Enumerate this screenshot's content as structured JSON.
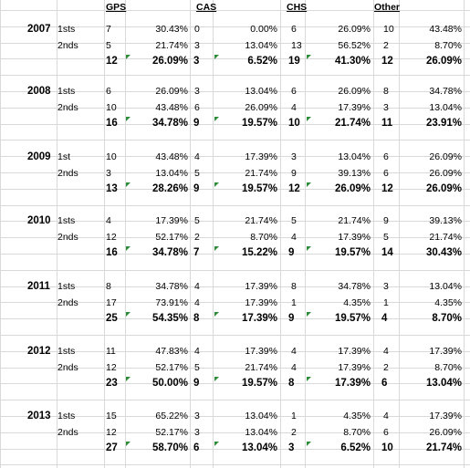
{
  "headers": {
    "gps": "GPS",
    "cas": "CAS",
    "chs": "CHS",
    "other": "Other"
  },
  "blocks": [
    {
      "year": "2007",
      "rows": [
        {
          "label": "1sts",
          "gps": "7",
          "gps_pct": "30.43%",
          "cas": "0",
          "cas_pct": "0.00%",
          "chs": "6",
          "chs_pct": "26.09%",
          "other": "10",
          "other_pct": "43.48%"
        },
        {
          "label": "2nds",
          "gps": "5",
          "gps_pct": "21.74%",
          "cas": "3",
          "cas_pct": "13.04%",
          "chs": "13",
          "chs_pct": "56.52%",
          "other": "2",
          "other_pct": "8.70%"
        }
      ],
      "total": {
        "gps": "12",
        "gps_pct": "26.09%",
        "cas": "3",
        "cas_pct": "6.52%",
        "chs": "19",
        "chs_pct": "41.30%",
        "other": "12",
        "other_pct": "26.09%"
      }
    },
    {
      "year": "2008",
      "rows": [
        {
          "label": "1sts",
          "gps": "6",
          "gps_pct": "26.09%",
          "cas": "3",
          "cas_pct": "13.04%",
          "chs": "6",
          "chs_pct": "26.09%",
          "other": "8",
          "other_pct": "34.78%"
        },
        {
          "label": "2nds",
          "gps": "10",
          "gps_pct": "43.48%",
          "cas": "6",
          "cas_pct": "26.09%",
          "chs": "4",
          "chs_pct": "17.39%",
          "other": "3",
          "other_pct": "13.04%"
        }
      ],
      "total": {
        "gps": "16",
        "gps_pct": "34.78%",
        "cas": "9",
        "cas_pct": "19.57%",
        "chs": "10",
        "chs_pct": "21.74%",
        "other": "11",
        "other_pct": "23.91%"
      }
    },
    {
      "year": "2009",
      "rows": [
        {
          "label": "1st",
          "gps": "10",
          "gps_pct": "43.48%",
          "cas": "4",
          "cas_pct": "17.39%",
          "chs": "3",
          "chs_pct": "13.04%",
          "other": "6",
          "other_pct": "26.09%"
        },
        {
          "label": "2nds",
          "gps": "3",
          "gps_pct": "13.04%",
          "cas": "5",
          "cas_pct": "21.74%",
          "chs": "9",
          "chs_pct": "39.13%",
          "other": "6",
          "other_pct": "26.09%"
        }
      ],
      "total": {
        "gps": "13",
        "gps_pct": "28.26%",
        "cas": "9",
        "cas_pct": "19.57%",
        "chs": "12",
        "chs_pct": "26.09%",
        "other": "12",
        "other_pct": "26.09%"
      }
    },
    {
      "year": "2010",
      "rows": [
        {
          "label": "1sts",
          "gps": "4",
          "gps_pct": "17.39%",
          "cas": "5",
          "cas_pct": "21.74%",
          "chs": "5",
          "chs_pct": "21.74%",
          "other": "9",
          "other_pct": "39.13%"
        },
        {
          "label": "2nds",
          "gps": "12",
          "gps_pct": "52.17%",
          "cas": "2",
          "cas_pct": "8.70%",
          "chs": "4",
          "chs_pct": "17.39%",
          "other": "5",
          "other_pct": "21.74%"
        }
      ],
      "total": {
        "gps": "16",
        "gps_pct": "34.78%",
        "cas": "7",
        "cas_pct": "15.22%",
        "chs": "9",
        "chs_pct": "19.57%",
        "other": "14",
        "other_pct": "30.43%"
      }
    },
    {
      "year": "2011",
      "rows": [
        {
          "label": "1sts",
          "gps": "8",
          "gps_pct": "34.78%",
          "cas": "4",
          "cas_pct": "17.39%",
          "chs": "8",
          "chs_pct": "34.78%",
          "other": "3",
          "other_pct": "13.04%"
        },
        {
          "label": "2nds",
          "gps": "17",
          "gps_pct": "73.91%",
          "cas": "4",
          "cas_pct": "17.39%",
          "chs": "1",
          "chs_pct": "4.35%",
          "other": "1",
          "other_pct": "4.35%"
        }
      ],
      "total": {
        "gps": "25",
        "gps_pct": "54.35%",
        "cas": "8",
        "cas_pct": "17.39%",
        "chs": "9",
        "chs_pct": "19.57%",
        "other": "4",
        "other_pct": "8.70%"
      }
    },
    {
      "year": "2012",
      "rows": [
        {
          "label": "1sts",
          "gps": "11",
          "gps_pct": "47.83%",
          "cas": "4",
          "cas_pct": "17.39%",
          "chs": "4",
          "chs_pct": "17.39%",
          "other": "4",
          "other_pct": "17.39%"
        },
        {
          "label": "2nds",
          "gps": "12",
          "gps_pct": "52.17%",
          "cas": "5",
          "cas_pct": "21.74%",
          "chs": "4",
          "chs_pct": "17.39%",
          "other": "2",
          "other_pct": "8.70%"
        }
      ],
      "total": {
        "gps": "23",
        "gps_pct": "50.00%",
        "cas": "9",
        "cas_pct": "19.57%",
        "chs": "8",
        "chs_pct": "17.39%",
        "other": "6",
        "other_pct": "13.04%"
      }
    },
    {
      "year": "2013",
      "rows": [
        {
          "label": "1sts",
          "gps": "15",
          "gps_pct": "65.22%",
          "cas": "3",
          "cas_pct": "13.04%",
          "chs": "1",
          "chs_pct": "4.35%",
          "other": "4",
          "other_pct": "17.39%"
        },
        {
          "label": "2nds",
          "gps": "12",
          "gps_pct": "52.17%",
          "cas": "3",
          "cas_pct": "13.04%",
          "chs": "2",
          "chs_pct": "8.70%",
          "other": "6",
          "other_pct": "26.09%"
        }
      ],
      "total": {
        "gps": "27",
        "gps_pct": "58.70%",
        "cas": "6",
        "cas_pct": "13.04%",
        "chs": "3",
        "chs_pct": "6.52%",
        "other": "10",
        "other_pct": "21.74%"
      }
    }
  ]
}
